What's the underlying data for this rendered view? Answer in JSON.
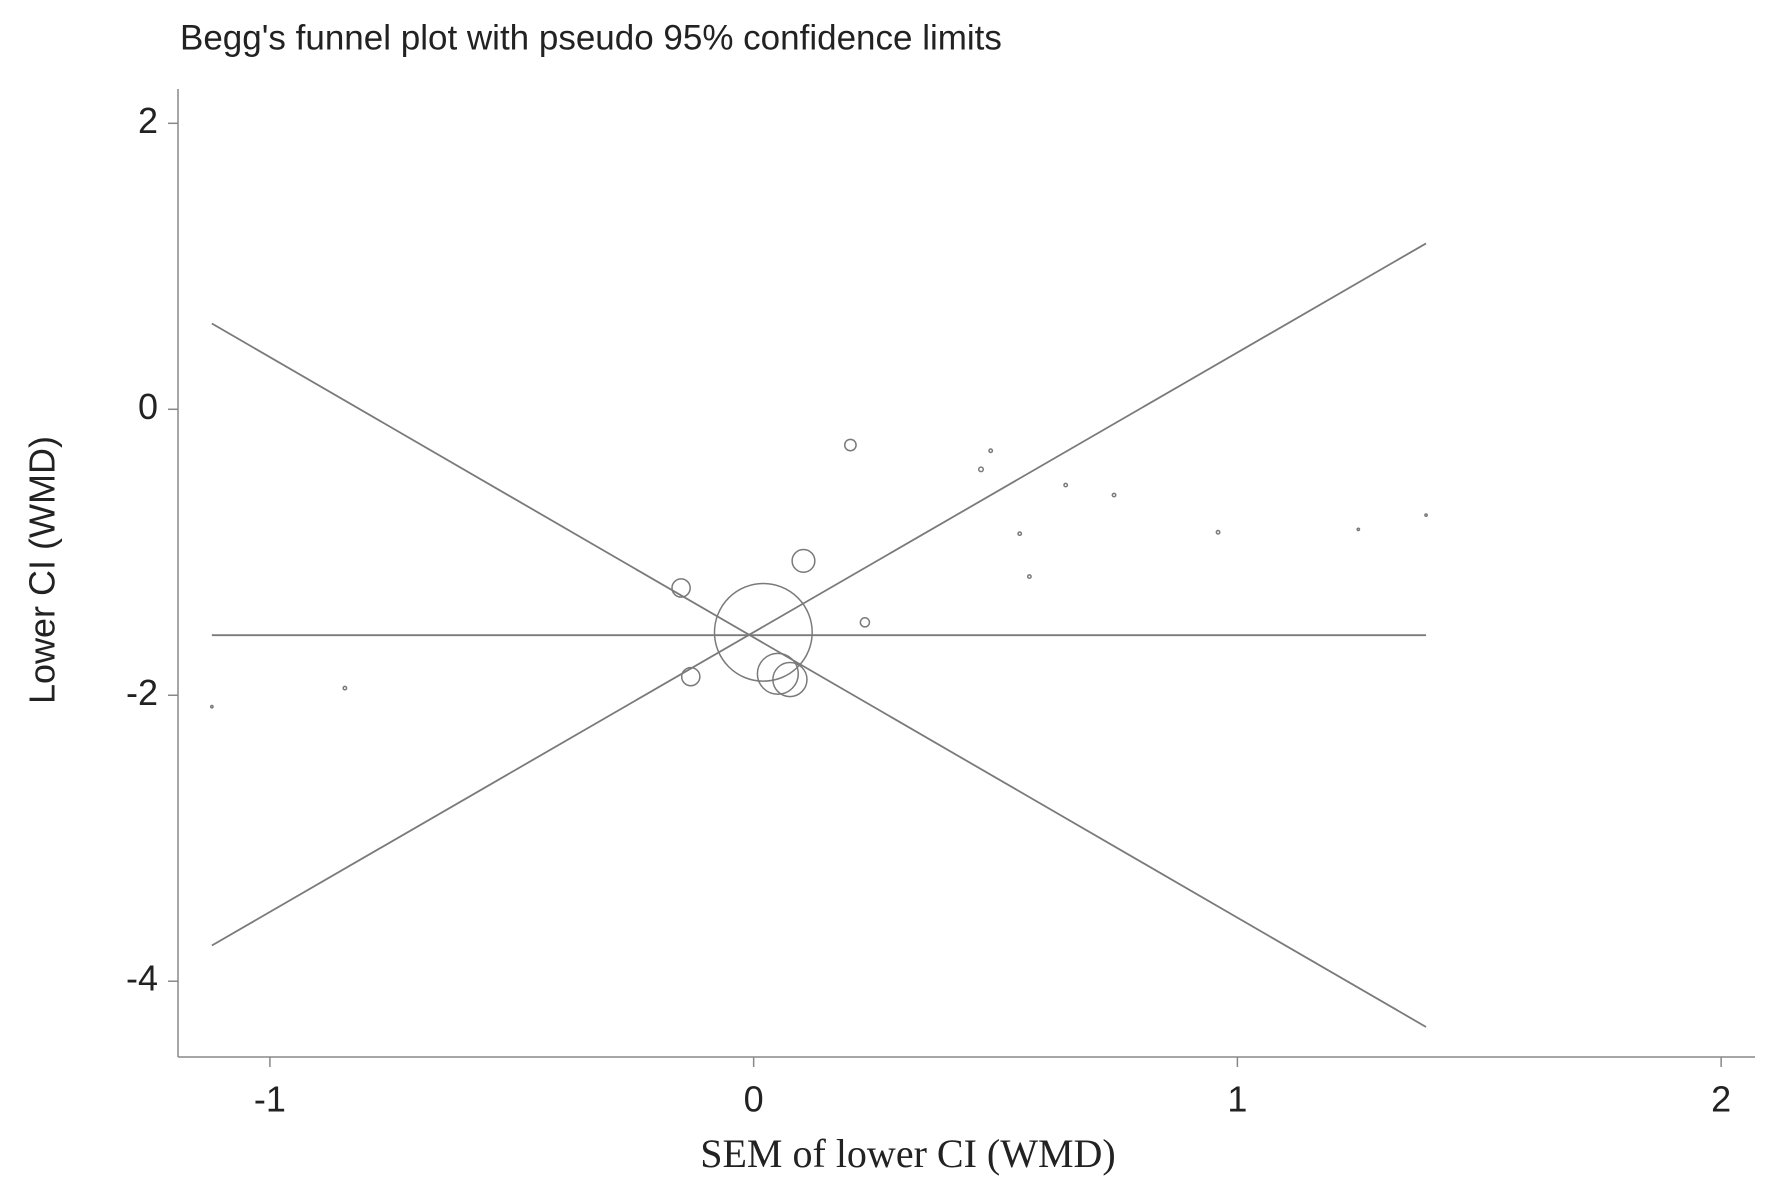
{
  "chart_data": {
    "type": "scatter",
    "title": "Begg's funnel plot with pseudo 95% confidence limits",
    "x_label": "SEM of lower CI (WMD)",
    "y_label": "Lower CI (WMD)",
    "xlim": [
      -1.19,
      2.07
    ],
    "ylim": [
      -4.53,
      2.24
    ],
    "xticks": [
      -1,
      0,
      1,
      2
    ],
    "yticks": [
      -4,
      -2,
      0,
      2
    ],
    "color": "#7a7a7a",
    "x": [
      -1.12,
      -0.845,
      -0.15,
      -0.13,
      0.02,
      0.05,
      0.075,
      0.103,
      0.2,
      0.23,
      0.47,
      0.49,
      0.55,
      0.57,
      0.645,
      0.745,
      0.96,
      1.25,
      1.39
    ],
    "values": [
      -2.08,
      -1.95,
      -1.25,
      -1.87,
      -1.56,
      -1.85,
      -1.89,
      -1.06,
      -0.25,
      -1.49,
      -0.42,
      -0.29,
      -0.87,
      -1.17,
      -0.53,
      -0.6,
      -0.86,
      -0.84,
      -0.74
    ],
    "sizes": [
      1,
      1.5,
      8,
      8,
      43,
      18,
      15,
      10,
      5,
      4,
      2,
      1.5,
      1.5,
      1.5,
      1.5,
      1.5,
      1.5,
      1,
      1
    ],
    "lines": [
      {
        "x": [
          -1.12,
          1.39
        ],
        "values": [
          -1.58,
          -1.58
        ]
      },
      {
        "x": [
          -1.12,
          1.39
        ],
        "values": [
          -3.75,
          1.16
        ]
      },
      {
        "x": [
          -1.12,
          1.39
        ],
        "values": [
          0.6,
          -4.32
        ]
      }
    ]
  }
}
